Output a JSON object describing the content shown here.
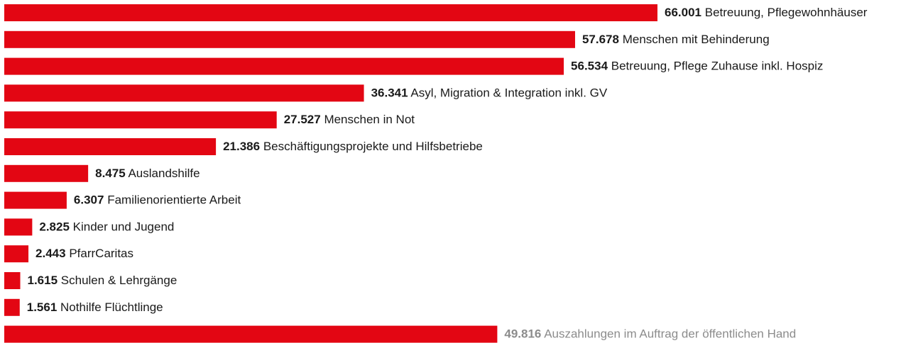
{
  "chart_data": {
    "type": "hbar",
    "categories": [
      "Betreuung, Pflegewohnhäuser",
      "Menschen mit Behinderung",
      "Betreuung, Pflege Zuhause inkl. Hospiz",
      "Asyl, Migration & Integration inkl. GV",
      "Menschen in Not",
      "Beschäftigungsprojekte und Hilfsbetriebe",
      "Auslandshilfe",
      "Familienorientierte Arbeit",
      "Kinder und Jugend",
      "PfarrCaritas",
      "Schulen & Lehrgänge",
      "Nothilfe Flüchtlinge",
      "Auszahlungen im Auftrag der öffentlichen Hand"
    ],
    "values": [
      66001,
      57678,
      56534,
      36341,
      27527,
      21386,
      8475,
      6307,
      2825,
      2443,
      1615,
      1561,
      49816
    ],
    "value_labels": [
      "66.001",
      "57.678",
      "56.534",
      "36.341",
      "27.527",
      "21.386",
      "8.475",
      "6.307",
      "2.825",
      "2.443",
      "1.615",
      "1.561",
      "49.816"
    ],
    "color": "#e30613",
    "label_colors": [
      "#1a1a1a",
      "#1a1a1a",
      "#1a1a1a",
      "#1a1a1a",
      "#1a1a1a",
      "#1a1a1a",
      "#1a1a1a",
      "#1a1a1a",
      "#1a1a1a",
      "#1a1a1a",
      "#1a1a1a",
      "#1a1a1a",
      "#8c8c8c"
    ]
  }
}
